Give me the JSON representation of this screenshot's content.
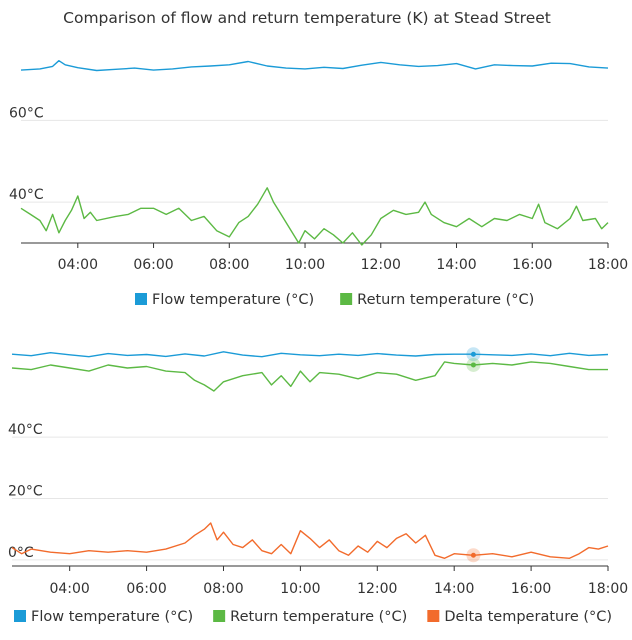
{
  "title": "Comparison of flow and return temperature (K) at Stead Street",
  "colors": {
    "flow": "#1b9bd7",
    "return": "#5cb944",
    "delta": "#f26b2c"
  },
  "chart_data": [
    {
      "type": "line",
      "title": "Comparison of flow and return temperature (K) at Stead Street",
      "xlabel": "",
      "ylabel": "",
      "xlim": [
        "02:30",
        "18:00"
      ],
      "ylim": [
        30,
        76
      ],
      "y_ticks": [
        {
          "v": 60,
          "label": "60°C"
        },
        {
          "v": 40,
          "label": "40°C"
        }
      ],
      "x_ticks": [
        "04:00",
        "06:00",
        "08:00",
        "10:00",
        "12:00",
        "14:00",
        "16:00",
        "18:00"
      ],
      "grid": true,
      "legend": "bottom",
      "series": [
        {
          "name": "Flow temperature (°C)",
          "color": "#1b9bd7",
          "points": [
            [
              "02:30",
              72.3
            ],
            [
              "03:00",
              72.6
            ],
            [
              "03:20",
              73.2
            ],
            [
              "03:30",
              74.6
            ],
            [
              "03:40",
              73.6
            ],
            [
              "04:00",
              72.9
            ],
            [
              "04:30",
              72.2
            ],
            [
              "05:00",
              72.5
            ],
            [
              "05:30",
              72.8
            ],
            [
              "06:00",
              72.3
            ],
            [
              "06:30",
              72.6
            ],
            [
              "07:00",
              73.1
            ],
            [
              "07:30",
              73.3
            ],
            [
              "08:00",
              73.6
            ],
            [
              "08:30",
              74.4
            ],
            [
              "09:00",
              73.3
            ],
            [
              "09:30",
              72.8
            ],
            [
              "10:00",
              72.6
            ],
            [
              "10:30",
              73.0
            ],
            [
              "11:00",
              72.7
            ],
            [
              "11:30",
              73.5
            ],
            [
              "12:00",
              74.2
            ],
            [
              "12:30",
              73.6
            ],
            [
              "13:00",
              73.2
            ],
            [
              "13:30",
              73.4
            ],
            [
              "14:00",
              73.9
            ],
            [
              "14:30",
              72.6
            ],
            [
              "15:00",
              73.6
            ],
            [
              "15:30",
              73.4
            ],
            [
              "16:00",
              73.3
            ],
            [
              "16:30",
              74.0
            ],
            [
              "17:00",
              73.9
            ],
            [
              "17:30",
              73.1
            ],
            [
              "18:00",
              72.8
            ]
          ]
        },
        {
          "name": "Return temperature (°C)",
          "color": "#5cb944",
          "points": [
            [
              "02:30",
              38.5
            ],
            [
              "02:45",
              37.0
            ],
            [
              "03:00",
              35.5
            ],
            [
              "03:10",
              33.0
            ],
            [
              "03:20",
              37.0
            ],
            [
              "03:30",
              32.5
            ],
            [
              "03:40",
              35.5
            ],
            [
              "03:50",
              38.0
            ],
            [
              "04:00",
              41.5
            ],
            [
              "04:10",
              36.0
            ],
            [
              "04:20",
              37.5
            ],
            [
              "04:30",
              35.5
            ],
            [
              "05:00",
              36.5
            ],
            [
              "05:20",
              37.0
            ],
            [
              "05:40",
              38.5
            ],
            [
              "06:00",
              38.5
            ],
            [
              "06:20",
              37.0
            ],
            [
              "06:40",
              38.5
            ],
            [
              "07:00",
              35.5
            ],
            [
              "07:20",
              36.5
            ],
            [
              "07:40",
              33.0
            ],
            [
              "08:00",
              31.5
            ],
            [
              "08:15",
              35.0
            ],
            [
              "08:30",
              36.5
            ],
            [
              "08:45",
              39.5
            ],
            [
              "09:00",
              43.5
            ],
            [
              "09:10",
              40.0
            ],
            [
              "09:20",
              37.5
            ],
            [
              "09:40",
              32.5
            ],
            [
              "09:50",
              30.0
            ],
            [
              "10:00",
              33.0
            ],
            [
              "10:15",
              31.0
            ],
            [
              "10:30",
              33.5
            ],
            [
              "10:45",
              32.0
            ],
            [
              "11:00",
              30.0
            ],
            [
              "11:15",
              32.5
            ],
            [
              "11:30",
              29.5
            ],
            [
              "11:45",
              32.0
            ],
            [
              "12:00",
              36.0
            ],
            [
              "12:20",
              38.0
            ],
            [
              "12:40",
              37.0
            ],
            [
              "13:00",
              37.5
            ],
            [
              "13:10",
              40.0
            ],
            [
              "13:20",
              37.0
            ],
            [
              "13:40",
              35.0
            ],
            [
              "14:00",
              34.0
            ],
            [
              "14:20",
              36.0
            ],
            [
              "14:40",
              34.0
            ],
            [
              "15:00",
              36.0
            ],
            [
              "15:20",
              35.5
            ],
            [
              "15:40",
              37.0
            ],
            [
              "16:00",
              36.0
            ],
            [
              "16:10",
              39.5
            ],
            [
              "16:20",
              35.0
            ],
            [
              "16:40",
              33.5
            ],
            [
              "17:00",
              36.0
            ],
            [
              "17:10",
              39.0
            ],
            [
              "17:20",
              35.5
            ],
            [
              "17:40",
              36.0
            ],
            [
              "17:50",
              33.5
            ],
            [
              "18:00",
              35.0
            ]
          ]
        }
      ]
    },
    {
      "type": "line",
      "title": "",
      "xlabel": "",
      "ylabel": "",
      "xlim": [
        "02:30",
        "18:00"
      ],
      "ylim": [
        -2,
        70
      ],
      "y_ticks": [
        {
          "v": 40,
          "label": "40°C"
        },
        {
          "v": 20,
          "label": "20°C"
        },
        {
          "v": 0,
          "label": "0°C"
        }
      ],
      "x_ticks": [
        "04:00",
        "06:00",
        "08:00",
        "10:00",
        "12:00",
        "14:00",
        "16:00",
        "18:00"
      ],
      "grid": true,
      "legend": "bottom",
      "series": [
        {
          "name": "Flow temperature (°C)",
          "color": "#1b9bd7",
          "points": [
            [
              "02:30",
              67.0
            ],
            [
              "03:00",
              66.5
            ],
            [
              "03:30",
              67.5
            ],
            [
              "04:00",
              66.8
            ],
            [
              "04:30",
              66.2
            ],
            [
              "05:00",
              67.2
            ],
            [
              "05:30",
              66.6
            ],
            [
              "06:00",
              66.9
            ],
            [
              "06:30",
              66.3
            ],
            [
              "07:00",
              67.1
            ],
            [
              "07:30",
              66.4
            ],
            [
              "08:00",
              67.8
            ],
            [
              "08:30",
              66.7
            ],
            [
              "09:00",
              66.2
            ],
            [
              "09:30",
              67.3
            ],
            [
              "10:00",
              66.8
            ],
            [
              "10:30",
              66.5
            ],
            [
              "11:00",
              67.0
            ],
            [
              "11:30",
              66.6
            ],
            [
              "12:00",
              67.2
            ],
            [
              "12:30",
              66.7
            ],
            [
              "13:00",
              66.4
            ],
            [
              "13:30",
              66.9
            ],
            [
              "14:00",
              67.0
            ],
            [
              "14:30",
              67.0
            ],
            [
              "15:00",
              66.8
            ],
            [
              "15:30",
              66.6
            ],
            [
              "16:00",
              67.1
            ],
            [
              "16:30",
              66.5
            ],
            [
              "17:00",
              67.3
            ],
            [
              "17:30",
              66.6
            ],
            [
              "18:00",
              66.9
            ]
          ]
        },
        {
          "name": "Return temperature (°C)",
          "color": "#5cb944",
          "points": [
            [
              "02:30",
              62.5
            ],
            [
              "03:00",
              62.0
            ],
            [
              "03:30",
              63.5
            ],
            [
              "04:00",
              62.5
            ],
            [
              "04:30",
              61.5
            ],
            [
              "05:00",
              63.5
            ],
            [
              "05:30",
              62.5
            ],
            [
              "06:00",
              63.0
            ],
            [
              "06:30",
              61.5
            ],
            [
              "07:00",
              61.0
            ],
            [
              "07:15",
              58.5
            ],
            [
              "07:30",
              57.0
            ],
            [
              "07:45",
              55.0
            ],
            [
              "08:00",
              58.0
            ],
            [
              "08:30",
              60.0
            ],
            [
              "09:00",
              61.0
            ],
            [
              "09:15",
              57.0
            ],
            [
              "09:30",
              60.0
            ],
            [
              "09:45",
              56.5
            ],
            [
              "10:00",
              61.5
            ],
            [
              "10:15",
              58.0
            ],
            [
              "10:30",
              61.0
            ],
            [
              "11:00",
              60.5
            ],
            [
              "11:30",
              59.0
            ],
            [
              "12:00",
              61.0
            ],
            [
              "12:30",
              60.5
            ],
            [
              "13:00",
              58.5
            ],
            [
              "13:30",
              60.0
            ],
            [
              "13:45",
              64.5
            ],
            [
              "14:00",
              64.0
            ],
            [
              "14:30",
              63.5
            ],
            [
              "15:00",
              64.0
            ],
            [
              "15:30",
              63.5
            ],
            [
              "16:00",
              64.5
            ],
            [
              "16:30",
              64.0
            ],
            [
              "17:00",
              63.0
            ],
            [
              "17:30",
              62.0
            ],
            [
              "18:00",
              62.0
            ]
          ]
        },
        {
          "name": "Delta temperature (°C)",
          "color": "#f26b2c",
          "points": [
            [
              "02:30",
              4.0
            ],
            [
              "02:45",
              2.0
            ],
            [
              "03:00",
              3.5
            ],
            [
              "03:30",
              2.5
            ],
            [
              "04:00",
              2.0
            ],
            [
              "04:30",
              3.0
            ],
            [
              "05:00",
              2.5
            ],
            [
              "05:30",
              3.0
            ],
            [
              "06:00",
              2.5
            ],
            [
              "06:30",
              3.5
            ],
            [
              "07:00",
              5.5
            ],
            [
              "07:15",
              8.0
            ],
            [
              "07:30",
              10.0
            ],
            [
              "07:40",
              12.0
            ],
            [
              "07:50",
              6.5
            ],
            [
              "08:00",
              9.0
            ],
            [
              "08:15",
              5.0
            ],
            [
              "08:30",
              4.0
            ],
            [
              "08:45",
              6.5
            ],
            [
              "09:00",
              3.0
            ],
            [
              "09:15",
              2.0
            ],
            [
              "09:30",
              5.0
            ],
            [
              "09:45",
              2.0
            ],
            [
              "10:00",
              9.5
            ],
            [
              "10:15",
              7.0
            ],
            [
              "10:30",
              4.0
            ],
            [
              "10:45",
              6.5
            ],
            [
              "11:00",
              3.0
            ],
            [
              "11:15",
              1.5
            ],
            [
              "11:30",
              4.5
            ],
            [
              "11:45",
              2.5
            ],
            [
              "12:00",
              6.0
            ],
            [
              "12:15",
              4.0
            ],
            [
              "12:30",
              7.0
            ],
            [
              "12:45",
              8.5
            ],
            [
              "13:00",
              5.5
            ],
            [
              "13:15",
              8.0
            ],
            [
              "13:30",
              1.5
            ],
            [
              "13:45",
              0.5
            ],
            [
              "14:00",
              2.0
            ],
            [
              "14:30",
              1.5
            ],
            [
              "15:00",
              2.0
            ],
            [
              "15:30",
              1.0
            ],
            [
              "16:00",
              2.5
            ],
            [
              "16:30",
              1.0
            ],
            [
              "17:00",
              0.5
            ],
            [
              "17:15",
              2.0
            ],
            [
              "17:30",
              4.0
            ],
            [
              "17:45",
              3.5
            ],
            [
              "18:00",
              4.5
            ]
          ]
        }
      ]
    }
  ]
}
